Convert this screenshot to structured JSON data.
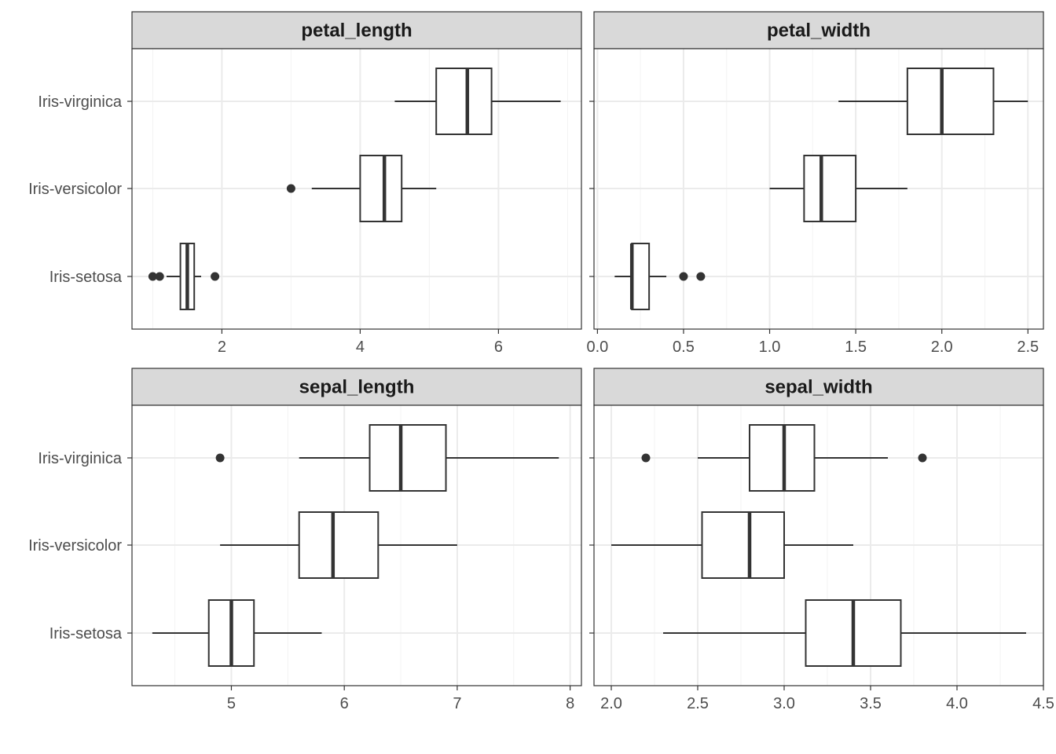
{
  "chart_data": [
    {
      "type": "boxplot",
      "title": "petal_length",
      "categories": [
        "Iris-setosa",
        "Iris-versicolor",
        "Iris-virginica"
      ],
      "xlim": [
        0.7,
        7.2
      ],
      "xticks": [
        2,
        4,
        6
      ],
      "tick_labels": [
        "2",
        "4",
        "6"
      ],
      "grid": true,
      "boxes": [
        {
          "category": "Iris-setosa",
          "whisker_low": 1.2,
          "q1": 1.4,
          "median": 1.5,
          "q3": 1.6,
          "whisker_high": 1.7,
          "outliers": [
            1.0,
            1.1,
            1.9
          ]
        },
        {
          "category": "Iris-versicolor",
          "whisker_low": 3.3,
          "q1": 4.0,
          "median": 4.35,
          "q3": 4.6,
          "whisker_high": 5.1,
          "outliers": [
            3.0
          ]
        },
        {
          "category": "Iris-virginica",
          "whisker_low": 4.5,
          "q1": 5.1,
          "median": 5.55,
          "q3": 5.9,
          "whisker_high": 6.9,
          "outliers": []
        }
      ]
    },
    {
      "type": "boxplot",
      "title": "petal_width",
      "categories": [
        "Iris-setosa",
        "Iris-versicolor",
        "Iris-virginica"
      ],
      "xlim": [
        -0.02,
        2.59
      ],
      "xticks": [
        0.0,
        0.5,
        1.0,
        1.5,
        2.0,
        2.5
      ],
      "tick_labels": [
        "0.0",
        "0.5",
        "1.0",
        "1.5",
        "2.0",
        "2.5"
      ],
      "grid": true,
      "boxes": [
        {
          "category": "Iris-setosa",
          "whisker_low": 0.1,
          "q1": 0.2,
          "median": 0.2,
          "q3": 0.3,
          "whisker_high": 0.4,
          "outliers": [
            0.5,
            0.6
          ]
        },
        {
          "category": "Iris-versicolor",
          "whisker_low": 1.0,
          "q1": 1.2,
          "median": 1.3,
          "q3": 1.5,
          "whisker_high": 1.8,
          "outliers": []
        },
        {
          "category": "Iris-virginica",
          "whisker_low": 1.4,
          "q1": 1.8,
          "median": 2.0,
          "q3": 2.3,
          "whisker_high": 2.5,
          "outliers": []
        }
      ]
    },
    {
      "type": "boxplot",
      "title": "sepal_length",
      "categories": [
        "Iris-setosa",
        "Iris-versicolor",
        "Iris-virginica"
      ],
      "xlim": [
        4.12,
        8.1
      ],
      "xticks": [
        5,
        6,
        7,
        8
      ],
      "tick_labels": [
        "5",
        "6",
        "7",
        "8"
      ],
      "grid": true,
      "boxes": [
        {
          "category": "Iris-setosa",
          "whisker_low": 4.3,
          "q1": 4.8,
          "median": 5.0,
          "q3": 5.2,
          "whisker_high": 5.8,
          "outliers": []
        },
        {
          "category": "Iris-versicolor",
          "whisker_low": 4.9,
          "q1": 5.6,
          "median": 5.9,
          "q3": 6.3,
          "whisker_high": 7.0,
          "outliers": []
        },
        {
          "category": "Iris-virginica",
          "whisker_low": 5.6,
          "q1": 6.225,
          "median": 6.5,
          "q3": 6.9,
          "whisker_high": 7.9,
          "outliers": [
            4.9
          ]
        }
      ]
    },
    {
      "type": "boxplot",
      "title": "sepal_width",
      "categories": [
        "Iris-setosa",
        "Iris-versicolor",
        "Iris-virginica"
      ],
      "xlim": [
        1.9,
        4.5
      ],
      "xticks": [
        2.0,
        2.5,
        3.0,
        3.5,
        4.0,
        4.5
      ],
      "tick_labels": [
        "2.0",
        "2.5",
        "3.0",
        "3.5",
        "4.0",
        "4.5"
      ],
      "grid": true,
      "boxes": [
        {
          "category": "Iris-setosa",
          "whisker_low": 2.3,
          "q1": 3.125,
          "median": 3.4,
          "q3": 3.675,
          "whisker_high": 4.4,
          "outliers": []
        },
        {
          "category": "Iris-versicolor",
          "whisker_low": 2.0,
          "q1": 2.525,
          "median": 2.8,
          "q3": 3.0,
          "whisker_high": 3.4,
          "outliers": []
        },
        {
          "category": "Iris-virginica",
          "whisker_low": 2.5,
          "q1": 2.8,
          "median": 3.0,
          "q3": 3.175,
          "whisker_high": 3.6,
          "outliers": [
            2.2,
            3.8
          ]
        }
      ]
    }
  ],
  "colors": {
    "strip_fill": "#d9d9d9",
    "panel_border": "#333333",
    "grid_major": "#ebebeb",
    "grid_minor": "#f3f3f3",
    "box_line": "#333333",
    "box_fill": "#ffffff",
    "outlier": "#333333",
    "text": "#4d4d4d"
  }
}
